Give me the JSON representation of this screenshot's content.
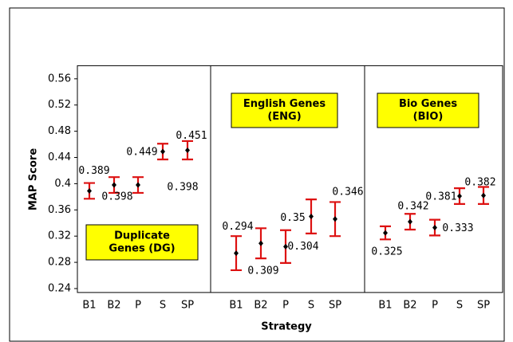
{
  "chart_data": {
    "type": "errorbar",
    "ylabel": "MAP Score",
    "xlabel": "Strategy",
    "ylim": [
      0.234,
      0.58
    ],
    "yticks": [
      0.24,
      0.28,
      0.32,
      0.36,
      0.4,
      0.44,
      0.48,
      0.52,
      0.56
    ],
    "point_color": "#000000",
    "error_color": "#dd1111",
    "box_color": "#ffff00",
    "panels": [
      {
        "label": [
          "Duplicate",
          "Genes (DG)"
        ],
        "categories": [
          "B1",
          "B2",
          "P",
          "S",
          "SP"
        ],
        "values": [
          0.389,
          0.398,
          0.398,
          0.449,
          0.451
        ],
        "errors": [
          0.012,
          0.012,
          0.012,
          0.012,
          0.014
        ]
      },
      {
        "label": [
          "English Genes",
          "(ENG)"
        ],
        "categories": [
          "B1",
          "B2",
          "P",
          "S",
          "SP"
        ],
        "values": [
          0.294,
          0.309,
          0.304,
          0.35,
          0.346
        ],
        "errors": [
          0.026,
          0.023,
          0.025,
          0.026,
          0.026
        ]
      },
      {
        "label": [
          "Bio Genes",
          "(BIO)"
        ],
        "categories": [
          "B1",
          "B2",
          "P",
          "S",
          "SP"
        ],
        "values": [
          0.325,
          0.342,
          0.333,
          0.381,
          0.382
        ],
        "errors": [
          0.01,
          0.012,
          0.012,
          0.012,
          0.013
        ]
      }
    ]
  }
}
